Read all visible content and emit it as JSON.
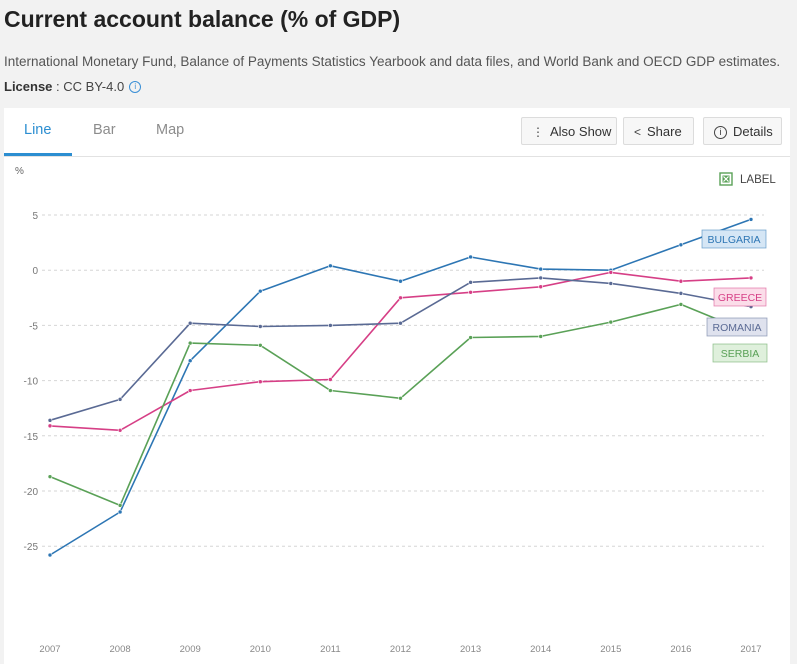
{
  "page": {
    "title": "Current account balance (% of GDP)",
    "source": "International Monetary Fund, Balance of Payments Statistics Yearbook and data files, and World Bank and OECD GDP estimates.",
    "license_label": "License",
    "license_value": " : CC BY-4.0"
  },
  "tabs": [
    "Line",
    "Bar",
    "Map"
  ],
  "actions": {
    "also_show": "Also Show",
    "share": "Share",
    "details": "Details"
  },
  "legend_toggle": {
    "label": "LABEL",
    "checked": true
  },
  "colors": {
    "BULGARIA": "#2d76b4",
    "GREECE": "#d63f86",
    "ROMANIA": "#5a6a94",
    "SERBIA": "#5aa157",
    "gridline": "#d6d6d6",
    "active_tab": "#2c8ed1"
  },
  "chart_data": {
    "type": "line",
    "ylabel": "%",
    "x": [
      "2007",
      "2008",
      "2009",
      "2010",
      "2011",
      "2012",
      "2013",
      "2014",
      "2015",
      "2016",
      "2017"
    ],
    "y_ticks": [
      5,
      0,
      -5,
      -10,
      -15,
      -20,
      -25
    ],
    "ylim": [
      -27,
      7
    ],
    "grid": true,
    "series": [
      {
        "name": "BULGARIA",
        "values": [
          -25.8,
          -21.9,
          -8.2,
          -1.9,
          0.4,
          -1.0,
          1.2,
          0.1,
          0.0,
          2.3,
          4.6
        ]
      },
      {
        "name": "GREECE",
        "values": [
          -14.1,
          -14.5,
          -10.9,
          -10.1,
          -9.9,
          -2.5,
          -2.0,
          -1.5,
          -0.2,
          -1.0,
          -0.7
        ]
      },
      {
        "name": "ROMANIA",
        "values": [
          -13.6,
          -11.7,
          -4.8,
          -5.1,
          -5.0,
          -4.8,
          -1.1,
          -0.7,
          -1.2,
          -2.1,
          -3.3
        ]
      },
      {
        "name": "SERBIA",
        "values": [
          -18.7,
          -21.3,
          -6.6,
          -6.8,
          -10.9,
          -11.6,
          -6.1,
          -6.0,
          -4.7,
          -3.1,
          -5.7
        ]
      }
    ]
  }
}
